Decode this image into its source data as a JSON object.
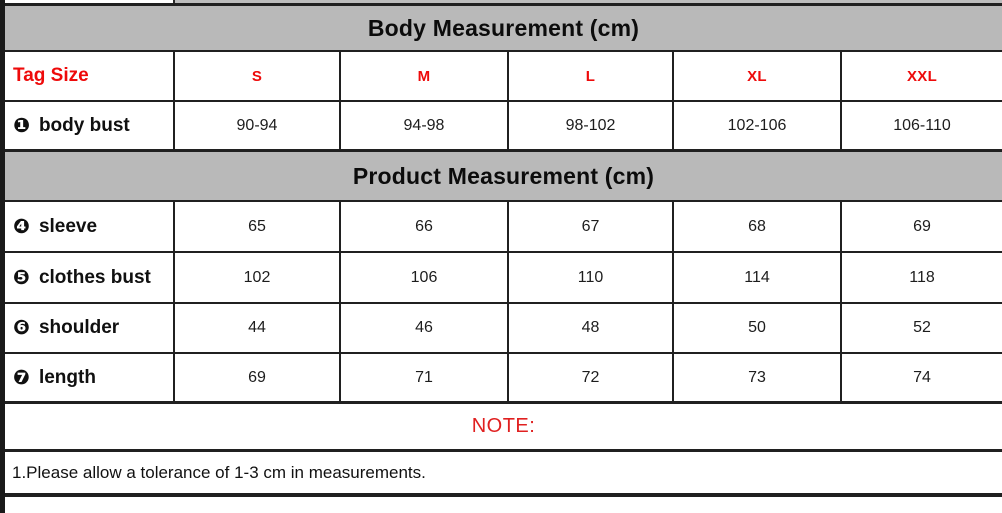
{
  "chart_data": {
    "type": "table",
    "header_row": {
      "label": "Tag Size",
      "sizes": [
        "S",
        "M",
        "L",
        "XL",
        "XXL"
      ]
    },
    "sections": [
      {
        "title": "Body Measurement (cm)",
        "rows": [
          {
            "marker": "❶",
            "label": "body bust",
            "values": [
              "90-94",
              "94-98",
              "98-102",
              "102-106",
              "106-110"
            ]
          }
        ]
      },
      {
        "title": "Product Measurement (cm)",
        "rows": [
          {
            "marker": "❹",
            "label": "sleeve",
            "values": [
              "65",
              "66",
              "67",
              "68",
              "69"
            ]
          },
          {
            "marker": "❺",
            "label": "clothes bust",
            "values": [
              "102",
              "106",
              "110",
              "114",
              "118"
            ]
          },
          {
            "marker": "❻",
            "label": "shoulder",
            "values": [
              "44",
              "46",
              "48",
              "50",
              "52"
            ]
          },
          {
            "marker": "❼",
            "label": "length",
            "values": [
              "69",
              "71",
              "72",
              "73",
              "74"
            ]
          }
        ]
      }
    ],
    "note_title": "NOTE:",
    "notes": [
      "1.Please allow a tolerance of 1-3 cm in measurements."
    ]
  },
  "colors": {
    "header_bg": "#b9b9b9",
    "accent_red": "#ee0a0a",
    "border_dark": "#202020",
    "left_strip": "#1a1a1a"
  }
}
